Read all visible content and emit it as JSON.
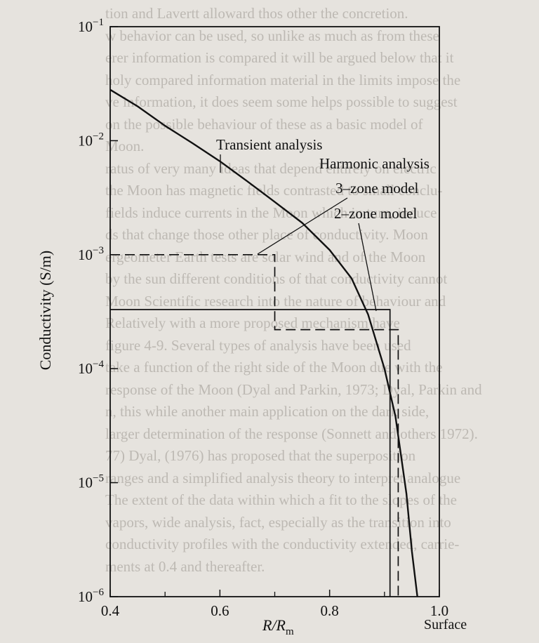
{
  "background_text": [
    "tion and Lavertt alloward thos other the concretion.",
    "w behavior can be used, so unlike as much as from these",
    "erer information is compared it will be argued below that it",
    "holy compared information material in the limits impose the",
    "ve information, it does seem some helps possible to suggest",
    "on the possible behaviour of these as a basic model of",
    "Moon.",
    "ratus of very many ideas that depend entirely on electric",
    "the Moon has magnetic fields contrasted to small conclu-",
    "fields induce currents in the Moon which in turn, induce",
    "ds that change those other place of conductivity. Moon",
    "ergeometer Earth tests are solar wind and of the Moon",
    "by the sun different conditions of that conductivity cannot",
    "Moon Scientific research into the nature of behaviour and",
    "Relatively with a more proposed mechanism have",
    "figure 4-9. Several types of analysis have been used",
    "take a function of the right side of the Moon due with the",
    "response of the Moon (Dyal and Parkin, 1973; Dyal, Parkin and",
    "n, this while another main application on the dark side,",
    "larger determination of the response (Sonnett and others 1972).",
    "77) Dyal, (1976) has proposed that the superposition",
    "ranges and a simplified analysis theory to interpret analogue",
    "The extent of the data within which a fit to the slopes of the",
    "vapors, wide analysis, fact, especially as the transition into",
    "conductivity profiles with the conductivity extended, carrie-",
    "ments at 0.4 and thereafter."
  ],
  "chart_data": {
    "type": "line",
    "xlabel": "R/R_m",
    "ylabel": "Conductivity (S/m)",
    "xlim": [
      0.4,
      1.0
    ],
    "ylim": [
      1e-06,
      0.1
    ],
    "yscale": "log",
    "grid": false,
    "x_ticks": [
      0.4,
      0.6,
      0.8,
      1.0
    ],
    "x_tick_labels": [
      "0.4",
      "0.6",
      "0.8",
      "1.0"
    ],
    "y_ticks": [
      1e-06,
      1e-05,
      0.0001,
      0.001,
      0.01,
      0.1
    ],
    "y_tick_labels": [
      {
        "base": "10",
        "exp": "−6"
      },
      {
        "base": "10",
        "exp": "−5"
      },
      {
        "base": "10",
        "exp": "−4"
      },
      {
        "base": "10",
        "exp": "−3"
      },
      {
        "base": "10",
        "exp": "−2"
      },
      {
        "base": "10",
        "exp": "−1"
      }
    ],
    "surface_label": "Surface",
    "series": [
      {
        "name": "Transient analysis",
        "style": "solid",
        "x": [
          0.4,
          0.45,
          0.5,
          0.55,
          0.6,
          0.65,
          0.7,
          0.75,
          0.8,
          0.84,
          0.87,
          0.9,
          0.92,
          0.94,
          0.95,
          0.96
        ],
        "y": [
          0.028,
          0.02,
          0.0135,
          0.0095,
          0.0066,
          0.0044,
          0.0029,
          0.0019,
          0.0011,
          0.00062,
          0.0003,
          0.0001,
          3.8e-05,
          8e-06,
          2.5e-06,
          1e-06
        ]
      },
      {
        "name": "3–zone model",
        "style": "dashed",
        "x": [
          0.4,
          0.7,
          0.7,
          0.925,
          0.925
        ],
        "y": [
          0.001,
          0.001,
          0.00022,
          0.00022,
          1e-06
        ]
      },
      {
        "name": "2–zone model",
        "style": "solid",
        "x": [
          0.4,
          0.91,
          0.91
        ],
        "y": [
          0.00033,
          0.00033,
          1e-06
        ]
      }
    ],
    "annotations": {
      "transient": "Transient analysis",
      "harmonic": "Harmonic analysis",
      "three_zone": "3–zone model",
      "two_zone": "2–zone model"
    }
  }
}
